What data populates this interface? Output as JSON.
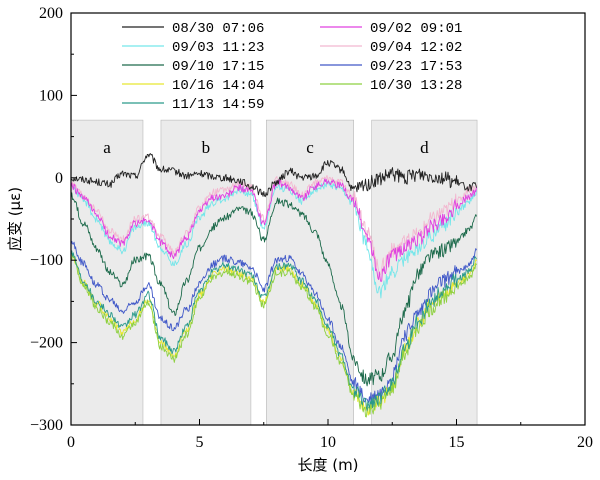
{
  "chart_data": {
    "type": "line",
    "title": "",
    "xlabel": "长度 (m)",
    "ylabel": "应变 (με)",
    "xlim": [
      0,
      20
    ],
    "ylim": [
      -300,
      200
    ],
    "xticks": [
      0,
      5,
      10,
      15,
      20
    ],
    "yticks": [
      -300,
      -200,
      -100,
      0,
      100,
      200
    ],
    "xtick_labels": [
      "0",
      "5",
      "10",
      "15",
      "20"
    ],
    "ytick_labels": [
      "−300",
      "−200",
      "−100",
      "0",
      "100",
      "200"
    ],
    "grid": false,
    "legend_position": "top",
    "regions": [
      {
        "label": "a",
        "x0": 0.0,
        "x1": 2.8,
        "ytop": 70
      },
      {
        "label": "b",
        "x0": 3.5,
        "x1": 7.0,
        "ytop": 70
      },
      {
        "label": "c",
        "x0": 7.6,
        "x1": 11.0,
        "ytop": 70
      },
      {
        "label": "d",
        "x0": 11.7,
        "x1": 15.8,
        "ytop": 70
      }
    ],
    "x": [
      0,
      0.5,
      1,
      1.5,
      2,
      2.5,
      3,
      3.5,
      4,
      4.5,
      5,
      5.5,
      6,
      6.5,
      7,
      7.5,
      8,
      8.5,
      9,
      9.5,
      10,
      10.5,
      11,
      11.5,
      12,
      12.5,
      13,
      13.5,
      14,
      14.5,
      15,
      15.5,
      15.8
    ],
    "series": [
      {
        "name": "08/30 07:06",
        "color": "#222222",
        "values": [
          0,
          -2,
          -5,
          -8,
          5,
          2,
          28,
          10,
          8,
          2,
          5,
          2,
          0,
          -3,
          -10,
          -20,
          -5,
          8,
          0,
          2,
          18,
          10,
          -15,
          -8,
          -2,
          4,
          0,
          5,
          3,
          0,
          -6,
          -12,
          -8
        ]
      },
      {
        "name": "09/02 09:01",
        "color": "#e040e0",
        "values": [
          -10,
          -25,
          -45,
          -70,
          -80,
          -55,
          -52,
          -78,
          -95,
          -72,
          -40,
          -24,
          -22,
          -12,
          -16,
          -55,
          -6,
          -12,
          -24,
          -10,
          -4,
          -10,
          -28,
          -70,
          -120,
          -95,
          -85,
          -75,
          -60,
          -50,
          -35,
          -22,
          -15
        ]
      },
      {
        "name": "09/03 11:23",
        "color": "#74e6ea",
        "values": [
          -10,
          -28,
          -50,
          -78,
          -88,
          -60,
          -55,
          -85,
          -105,
          -80,
          -48,
          -30,
          -25,
          -15,
          -20,
          -60,
          -10,
          -15,
          -28,
          -14,
          -8,
          -15,
          -32,
          -80,
          -140,
          -115,
          -98,
          -85,
          -70,
          -58,
          -42,
          -28,
          -18
        ]
      },
      {
        "name": "09/04 12:02",
        "color": "#f2b8d0",
        "values": [
          -8,
          -22,
          -40,
          -65,
          -75,
          -50,
          -48,
          -72,
          -90,
          -68,
          -36,
          -18,
          -15,
          -8,
          -12,
          -50,
          -2,
          -8,
          -20,
          -6,
          0,
          -6,
          -24,
          -65,
          -110,
          -88,
          -78,
          -68,
          -50,
          -40,
          -28,
          -15,
          -10
        ]
      },
      {
        "name": "09/10 17:15",
        "color": "#1e6b4c",
        "values": [
          -22,
          -55,
          -85,
          -115,
          -130,
          -100,
          -95,
          -130,
          -165,
          -125,
          -85,
          -60,
          -48,
          -38,
          -42,
          -75,
          -28,
          -32,
          -45,
          -65,
          -105,
          -155,
          -220,
          -245,
          -240,
          -215,
          -160,
          -115,
          -95,
          -88,
          -78,
          -62,
          -48
        ]
      },
      {
        "name": "09/23 17:53",
        "color": "#4058c8",
        "values": [
          -78,
          -105,
          -130,
          -148,
          -162,
          -150,
          -130,
          -172,
          -182,
          -160,
          -128,
          -105,
          -98,
          -102,
          -108,
          -135,
          -100,
          -98,
          -118,
          -140,
          -172,
          -205,
          -250,
          -270,
          -262,
          -240,
          -190,
          -165,
          -140,
          -125,
          -115,
          -105,
          -88
        ]
      },
      {
        "name": "10/16 14:04",
        "color": "#e8e830",
        "values": [
          -92,
          -128,
          -152,
          -170,
          -188,
          -172,
          -148,
          -200,
          -215,
          -185,
          -142,
          -118,
          -110,
          -115,
          -122,
          -150,
          -112,
          -110,
          -130,
          -152,
          -185,
          -220,
          -262,
          -280,
          -272,
          -252,
          -208,
          -178,
          -155,
          -140,
          -128,
          -118,
          -100
        ]
      },
      {
        "name": "10/30 13:28",
        "color": "#8ed040",
        "values": [
          -95,
          -130,
          -158,
          -175,
          -192,
          -175,
          -152,
          -205,
          -220,
          -190,
          -146,
          -122,
          -114,
          -119,
          -126,
          -155,
          -116,
          -114,
          -134,
          -156,
          -190,
          -225,
          -265,
          -283,
          -275,
          -256,
          -212,
          -182,
          -160,
          -144,
          -132,
          -122,
          -104
        ]
      },
      {
        "name": "11/13 14:59",
        "color": "#2a9a8a",
        "values": [
          -90,
          -125,
          -150,
          -165,
          -182,
          -166,
          -142,
          -195,
          -210,
          -180,
          -138,
          -114,
          -106,
          -111,
          -118,
          -146,
          -108,
          -106,
          -126,
          -148,
          -180,
          -215,
          -258,
          -275,
          -268,
          -248,
          -204,
          -174,
          -150,
          -136,
          -124,
          -114,
          -96
        ]
      }
    ]
  },
  "legend": {
    "left": [
      "08/30 07:06",
      "09/03 11:23",
      "09/10 17:15",
      "10/16 14:04",
      "11/13 14:59"
    ],
    "right": [
      "09/02 09:01",
      "09/04 12:02",
      "09/23 17:53",
      "10/30 13:28"
    ]
  }
}
